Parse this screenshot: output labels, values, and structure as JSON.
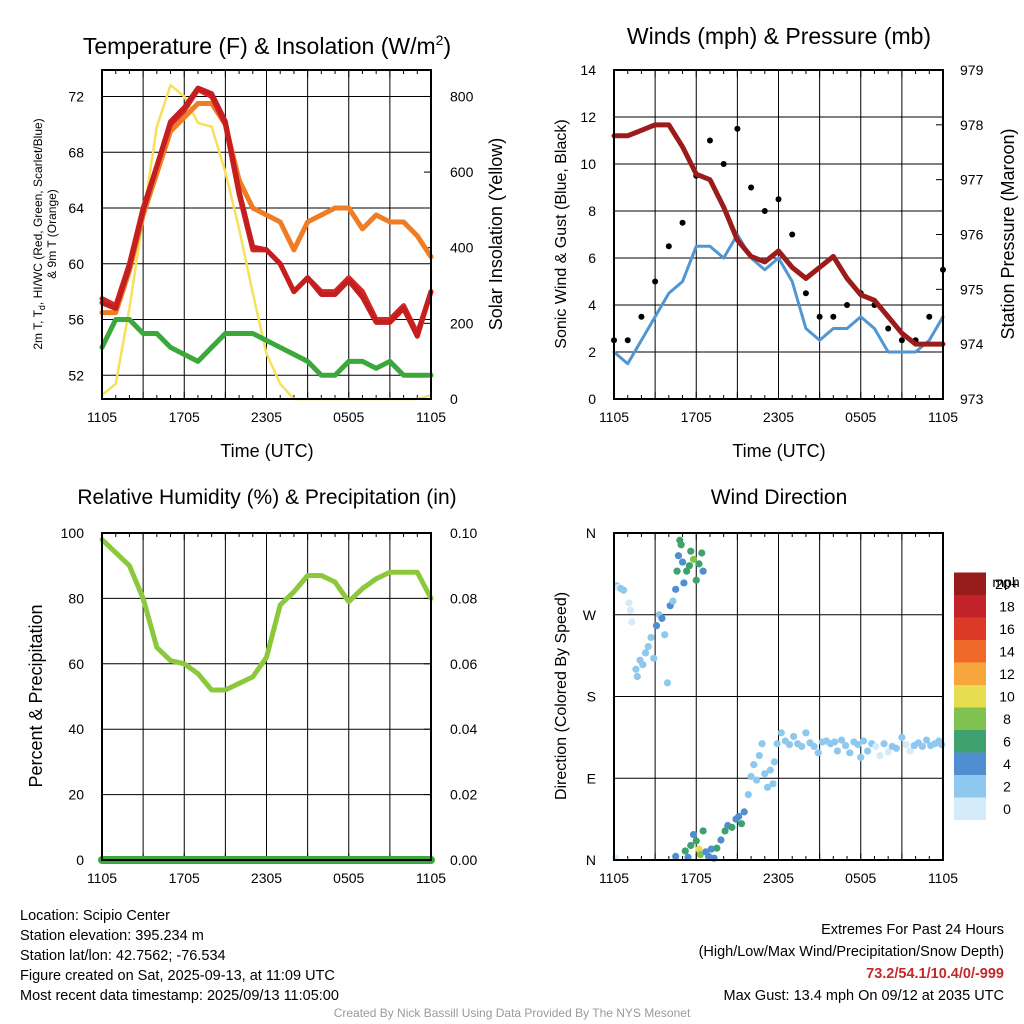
{
  "colors": {
    "temp": "#d42727",
    "dew": "#3aa83a",
    "windchill": "#c41e1e",
    "temp9m": "#f07d24",
    "solar": "#f7e05a",
    "wind": "#5096d2",
    "gust": "#000000",
    "pressure": "#9c1c1c",
    "rh": "#8cc83c",
    "precip": "#3aa83a"
  },
  "chart_data": [
    {
      "type": "line",
      "title": "Temperature (F) & Insolation (W/m²)",
      "xlabel": "Time (UTC)",
      "ylabel": "2m T, Td, HI/WC (Red, Green, Scarlet/Blue) & 9m T (Orange)",
      "ylabel_right": "Solar Insolation (Yellow)",
      "x_ticks": [
        "1105",
        "1705",
        "2305",
        "0505",
        "1105"
      ],
      "y_ticks": [
        52,
        56,
        60,
        64,
        68,
        72
      ],
      "y_right_ticks": [
        0,
        200,
        400,
        600,
        800
      ],
      "ylim": [
        50.3,
        73.9
      ],
      "ylim_right": [
        0,
        870
      ],
      "x": [
        0,
        1,
        2,
        3,
        4,
        5,
        6,
        7,
        8,
        9,
        10,
        11,
        12,
        13,
        14,
        15,
        16,
        17,
        18,
        19,
        20,
        21,
        22,
        23,
        24
      ],
      "series": [
        {
          "name": "2m T",
          "axis": "left",
          "color_key": "temp",
          "values": [
            57.5,
            57,
            60,
            64,
            67,
            70,
            71,
            72.5,
            72,
            70,
            65,
            61,
            61,
            60,
            58,
            59,
            58,
            58,
            59,
            58,
            56,
            56,
            57,
            55,
            58
          ]
        },
        {
          "name": "HI/WC",
          "axis": "left",
          "color_key": "windchill",
          "values": [
            57.2,
            56.8,
            59.8,
            63.8,
            67,
            70.2,
            71.2,
            72.6,
            72.2,
            70.2,
            65.2,
            61.2,
            61,
            60,
            58,
            59,
            57.8,
            57.8,
            58.8,
            57.6,
            55.8,
            55.8,
            56.8,
            54.8,
            58
          ]
        },
        {
          "name": "9m T",
          "axis": "left",
          "color_key": "temp9m",
          "values": [
            56.5,
            56.5,
            59.5,
            63.5,
            66.5,
            69.5,
            70.5,
            71.5,
            71.5,
            70,
            66,
            64,
            63.5,
            63,
            61,
            63,
            63.5,
            64,
            64,
            62.5,
            63.5,
            63,
            63,
            62,
            60.5
          ]
        },
        {
          "name": "2m Td",
          "axis": "left",
          "color_key": "dew",
          "values": [
            54,
            56,
            56,
            55,
            55,
            54,
            53.5,
            53,
            54,
            55,
            55,
            55,
            54.5,
            54,
            53.5,
            53,
            52,
            52,
            53,
            53,
            52.5,
            53,
            52,
            52,
            52
          ]
        },
        {
          "name": "Solar",
          "axis": "right",
          "color_key": "solar",
          "values": [
            10,
            40,
            240,
            480,
            720,
            830,
            800,
            730,
            720,
            600,
            450,
            280,
            120,
            40,
            0,
            0,
            0,
            0,
            0,
            0,
            0,
            0,
            0,
            0,
            10
          ]
        }
      ]
    },
    {
      "type": "line",
      "title": "Winds (mph) & Pressure (mb)",
      "xlabel": "Time (UTC)",
      "ylabel": "Sonic Wind & Gust (Blue, Black)",
      "ylabel_right": "Station Pressure (Maroon)",
      "x_ticks": [
        "1105",
        "1705",
        "2305",
        "0505",
        "1105"
      ],
      "y_ticks": [
        0,
        2,
        4,
        6,
        8,
        10,
        12,
        14
      ],
      "y_right_ticks": [
        973,
        974,
        975,
        976,
        977,
        978,
        979
      ],
      "ylim": [
        0,
        14
      ],
      "ylim_right": [
        973,
        979
      ],
      "x": [
        0,
        1,
        2,
        3,
        4,
        5,
        6,
        7,
        8,
        9,
        10,
        11,
        12,
        13,
        14,
        15,
        16,
        17,
        18,
        19,
        20,
        21,
        22,
        23,
        24
      ],
      "series": [
        {
          "name": "Sonic Wind",
          "axis": "left",
          "color_key": "wind",
          "values": [
            2,
            1.5,
            2.5,
            3.5,
            4.5,
            5,
            6.5,
            6.5,
            6,
            7,
            6,
            5.5,
            6,
            5,
            3,
            2.5,
            3,
            3,
            3.5,
            3,
            2,
            2,
            2,
            2.5,
            3.5
          ]
        },
        {
          "name": "Gust",
          "axis": "left",
          "color_key": "gust",
          "values": [
            2.5,
            2.5,
            3.5,
            5,
            6.5,
            7.5,
            9.5,
            11,
            10,
            11.5,
            9,
            8,
            8.5,
            7,
            4.5,
            3.5,
            3.5,
            4,
            4.5,
            4,
            3,
            2.5,
            2.5,
            3.5,
            5.5
          ]
        },
        {
          "name": "Pressure",
          "axis": "right",
          "color_key": "pressure",
          "values": [
            977.8,
            977.8,
            977.9,
            978,
            978,
            977.6,
            977.1,
            977.0,
            976.5,
            975.9,
            975.6,
            975.5,
            975.7,
            975.4,
            975.2,
            975.4,
            975.6,
            975.2,
            974.9,
            974.8,
            974.5,
            974.2,
            974.0,
            974.0,
            974.0
          ]
        }
      ]
    },
    {
      "type": "line",
      "title": "Relative Humidity (%) & Precipitation (in)",
      "xlabel": "",
      "ylabel": "Percent & Precipitation",
      "x_ticks": [
        "1105",
        "1705",
        "2305",
        "0505",
        "1105"
      ],
      "y_ticks": [
        0,
        20,
        40,
        60,
        80,
        100
      ],
      "y_right_ticks": [
        "0.00",
        "0.02",
        "0.04",
        "0.06",
        "0.08",
        "0.10"
      ],
      "ylim": [
        0,
        100
      ],
      "ylim_right": [
        0,
        0.1
      ],
      "x": [
        0,
        1,
        2,
        3,
        4,
        5,
        6,
        7,
        8,
        9,
        10,
        11,
        12,
        13,
        14,
        15,
        16,
        17,
        18,
        19,
        20,
        21,
        22,
        23,
        24
      ],
      "series": [
        {
          "name": "RH",
          "axis": "left",
          "color_key": "rh",
          "values": [
            98,
            94,
            90,
            80,
            65,
            61,
            60,
            57,
            52,
            52,
            54,
            56,
            62,
            78,
            82,
            87,
            87,
            85,
            79,
            83,
            86,
            88,
            88,
            88,
            80
          ]
        },
        {
          "name": "Precipitation",
          "axis": "right",
          "color_key": "precip",
          "values": [
            0,
            0,
            0,
            0,
            0,
            0,
            0,
            0,
            0,
            0,
            0,
            0,
            0,
            0,
            0,
            0,
            0,
            0,
            0,
            0,
            0,
            0,
            0,
            0,
            0
          ]
        }
      ]
    },
    {
      "type": "scatter",
      "title": "Wind Direction",
      "xlabel": "",
      "ylabel": "Direction (Colored By Speed)",
      "x_ticks": [
        "1105",
        "1705",
        "2305",
        "0505",
        "1105"
      ],
      "y_ticks": [
        "N",
        "E",
        "S",
        "W",
        "N"
      ],
      "y_tick_values": [
        0,
        90,
        180,
        270,
        360
      ],
      "ylim": [
        0,
        360
      ],
      "colorbar_title": "mph",
      "colorbar_labels": [
        "0",
        "2",
        "4",
        "6",
        "8",
        "10",
        "12",
        "14",
        "16",
        "18",
        "20+"
      ],
      "colorbar_colors": [
        "#d4ecfa",
        "#8ec8ee",
        "#4f8fcf",
        "#3fa16e",
        "#7fc24f",
        "#e6de50",
        "#f6a63c",
        "#ef6a2a",
        "#dc3a26",
        "#c4222a",
        "#961c1c"
      ],
      "points": [
        {
          "x": 0.1,
          "dir": 2,
          "spd": 1
        },
        {
          "x": 0.2,
          "dir": 302,
          "spd": 2
        },
        {
          "x": 0.3,
          "dir": 300,
          "spd": 1.5
        },
        {
          "x": 0.5,
          "dir": 299,
          "spd": 2
        },
        {
          "x": 0.7,
          "dir": 297,
          "spd": 2
        },
        {
          "x": 1.1,
          "dir": 283,
          "spd": 1.5
        },
        {
          "x": 1.2,
          "dir": 275,
          "spd": 1
        },
        {
          "x": 1.3,
          "dir": 262,
          "spd": 1
        },
        {
          "x": 1.6,
          "dir": 210,
          "spd": 3
        },
        {
          "x": 1.7,
          "dir": 202,
          "spd": 3.5
        },
        {
          "x": 1.9,
          "dir": 220,
          "spd": 3
        },
        {
          "x": 2.1,
          "dir": 215,
          "spd": 3
        },
        {
          "x": 2.3,
          "dir": 228,
          "spd": 3.5
        },
        {
          "x": 2.5,
          "dir": 235,
          "spd": 3
        },
        {
          "x": 2.7,
          "dir": 245,
          "spd": 3.5
        },
        {
          "x": 2.9,
          "dir": 222,
          "spd": 2.5
        },
        {
          "x": 3.1,
          "dir": 258,
          "spd": 4
        },
        {
          "x": 3.3,
          "dir": 270,
          "spd": 3.5
        },
        {
          "x": 3.5,
          "dir": 266,
          "spd": 4
        },
        {
          "x": 3.7,
          "dir": 248,
          "spd": 3
        },
        {
          "x": 3.9,
          "dir": 195,
          "spd": 2
        },
        {
          "x": 4.1,
          "dir": 280,
          "spd": 4
        },
        {
          "x": 4.3,
          "dir": 285,
          "spd": 3.5
        },
        {
          "x": 4.5,
          "dir": 298,
          "spd": 5
        },
        {
          "x": 4.6,
          "dir": 318,
          "spd": 6
        },
        {
          "x": 4.7,
          "dir": 335,
          "spd": 5.5
        },
        {
          "x": 4.8,
          "dir": 352,
          "spd": 6
        },
        {
          "x": 4.9,
          "dir": 347,
          "spd": 7
        },
        {
          "x": 5.0,
          "dir": 328,
          "spd": 5
        },
        {
          "x": 5.1,
          "dir": 305,
          "spd": 4
        },
        {
          "x": 5.3,
          "dir": 318,
          "spd": 6
        },
        {
          "x": 5.5,
          "dir": 324,
          "spd": 7
        },
        {
          "x": 5.6,
          "dir": 340,
          "spd": 6
        },
        {
          "x": 5.8,
          "dir": 331,
          "spd": 8
        },
        {
          "x": 6.0,
          "dir": 308,
          "spd": 6
        },
        {
          "x": 6.2,
          "dir": 326,
          "spd": 7
        },
        {
          "x": 6.4,
          "dir": 338,
          "spd": 6
        },
        {
          "x": 6.5,
          "dir": 318,
          "spd": 5
        },
        {
          "x": 4.5,
          "dir": 4,
          "spd": 5
        },
        {
          "x": 5.2,
          "dir": 10,
          "spd": 6
        },
        {
          "x": 5.4,
          "dir": 3,
          "spd": 4
        },
        {
          "x": 5.6,
          "dir": 16,
          "spd": 7
        },
        {
          "x": 5.8,
          "dir": 28,
          "spd": 5
        },
        {
          "x": 6.0,
          "dir": 21,
          "spd": 7
        },
        {
          "x": 6.2,
          "dir": 12,
          "spd": 10
        },
        {
          "x": 6.3,
          "dir": 6,
          "spd": 8
        },
        {
          "x": 6.5,
          "dir": 32,
          "spd": 6
        },
        {
          "x": 6.7,
          "dir": 9,
          "spd": 5
        },
        {
          "x": 6.9,
          "dir": 4,
          "spd": 4
        },
        {
          "x": 7.1,
          "dir": 12,
          "spd": 5
        },
        {
          "x": 7.3,
          "dir": 2,
          "spd": 4
        },
        {
          "x": 7.5,
          "dir": 13,
          "spd": 6
        },
        {
          "x": 7.8,
          "dir": 22,
          "spd": 5
        },
        {
          "x": 8.1,
          "dir": 32,
          "spd": 6
        },
        {
          "x": 8.3,
          "dir": 38,
          "spd": 5
        },
        {
          "x": 8.6,
          "dir": 36,
          "spd": 6
        },
        {
          "x": 8.9,
          "dir": 45,
          "spd": 5
        },
        {
          "x": 9.1,
          "dir": 48,
          "spd": 4
        },
        {
          "x": 9.3,
          "dir": 40,
          "spd": 6
        },
        {
          "x": 9.5,
          "dir": 53,
          "spd": 4
        },
        {
          "x": 9.8,
          "dir": 72,
          "spd": 3
        },
        {
          "x": 10.0,
          "dir": 92,
          "spd": 3
        },
        {
          "x": 10.2,
          "dir": 105,
          "spd": 2.5
        },
        {
          "x": 10.4,
          "dir": 88,
          "spd": 2
        },
        {
          "x": 10.6,
          "dir": 115,
          "spd": 3
        },
        {
          "x": 10.8,
          "dir": 128,
          "spd": 2
        },
        {
          "x": 11.0,
          "dir": 95,
          "spd": 3
        },
        {
          "x": 11.2,
          "dir": 80,
          "spd": 2
        },
        {
          "x": 11.4,
          "dir": 99,
          "spd": 3
        },
        {
          "x": 11.6,
          "dir": 84,
          "spd": 2
        },
        {
          "x": 11.7,
          "dir": 108,
          "spd": 3
        },
        {
          "x": 11.9,
          "dir": 128,
          "spd": 3
        },
        {
          "x": 12.2,
          "dir": 140,
          "spd": 2
        },
        {
          "x": 12.5,
          "dir": 131,
          "spd": 3
        },
        {
          "x": 12.8,
          "dir": 127,
          "spd": 2
        },
        {
          "x": 13.1,
          "dir": 136,
          "spd": 3
        },
        {
          "x": 13.4,
          "dir": 128,
          "spd": 3
        },
        {
          "x": 13.7,
          "dir": 125,
          "spd": 3
        },
        {
          "x": 14.0,
          "dir": 140,
          "spd": 2
        },
        {
          "x": 14.3,
          "dir": 129,
          "spd": 2
        },
        {
          "x": 14.6,
          "dir": 125,
          "spd": 3
        },
        {
          "x": 14.9,
          "dir": 118,
          "spd": 2
        },
        {
          "x": 15.2,
          "dir": 130,
          "spd": 2
        },
        {
          "x": 15.5,
          "dir": 131,
          "spd": 3
        },
        {
          "x": 15.8,
          "dir": 128,
          "spd": 2
        },
        {
          "x": 16.1,
          "dir": 130,
          "spd": 3
        },
        {
          "x": 16.3,
          "dir": 120,
          "spd": 2
        },
        {
          "x": 16.6,
          "dir": 132,
          "spd": 3
        },
        {
          "x": 16.9,
          "dir": 126,
          "spd": 3
        },
        {
          "x": 17.2,
          "dir": 118,
          "spd": 2
        },
        {
          "x": 17.5,
          "dir": 130,
          "spd": 3
        },
        {
          "x": 17.8,
          "dir": 127,
          "spd": 2
        },
        {
          "x": 18.0,
          "dir": 113,
          "spd": 2
        },
        {
          "x": 18.2,
          "dir": 131,
          "spd": 3
        },
        {
          "x": 18.5,
          "dir": 120,
          "spd": 2
        },
        {
          "x": 18.8,
          "dir": 128,
          "spd": 3
        },
        {
          "x": 19.1,
          "dir": 125,
          "spd": 1.5
        },
        {
          "x": 19.4,
          "dir": 115,
          "spd": 1
        },
        {
          "x": 19.7,
          "dir": 128,
          "spd": 2
        },
        {
          "x": 20.0,
          "dir": 119,
          "spd": 1
        },
        {
          "x": 20.3,
          "dir": 125,
          "spd": 2
        },
        {
          "x": 20.6,
          "dir": 123,
          "spd": 2
        },
        {
          "x": 21.0,
          "dir": 135,
          "spd": 2
        },
        {
          "x": 21.3,
          "dir": 127,
          "spd": 1.5
        },
        {
          "x": 21.6,
          "dir": 120,
          "spd": 1
        },
        {
          "x": 21.9,
          "dir": 126,
          "spd": 2
        },
        {
          "x": 22.2,
          "dir": 129,
          "spd": 2
        },
        {
          "x": 22.5,
          "dir": 125,
          "spd": 3
        },
        {
          "x": 22.8,
          "dir": 132,
          "spd": 3
        },
        {
          "x": 23.1,
          "dir": 126,
          "spd": 3
        },
        {
          "x": 23.4,
          "dir": 128,
          "spd": 2
        },
        {
          "x": 23.7,
          "dir": 131,
          "spd": 3
        },
        {
          "x": 23.9,
          "dir": 127,
          "spd": 3
        }
      ]
    }
  ],
  "info": {
    "location": "Location: Scipio Center",
    "elevation": "Station elevation: 395.234 m",
    "latlon": "Station lat/lon: 42.7562; -76.534",
    "created": "Figure created on Sat, 2025-09-13, at 11:09 UTC",
    "recent": "Most recent data timestamp: 2025/09/13 11:05:00"
  },
  "extremes": {
    "heading": "Extremes For Past 24 Hours",
    "subheading": "(High/Low/Max Wind/Precipitation/Snow Depth)",
    "values": "73.2/54.1/10.4/0/-999",
    "gust": "Max Gust: 13.4 mph On 09/12 at 2035 UTC"
  },
  "credit": "Created By Nick Bassill Using Data Provided By The NYS Mesonet"
}
